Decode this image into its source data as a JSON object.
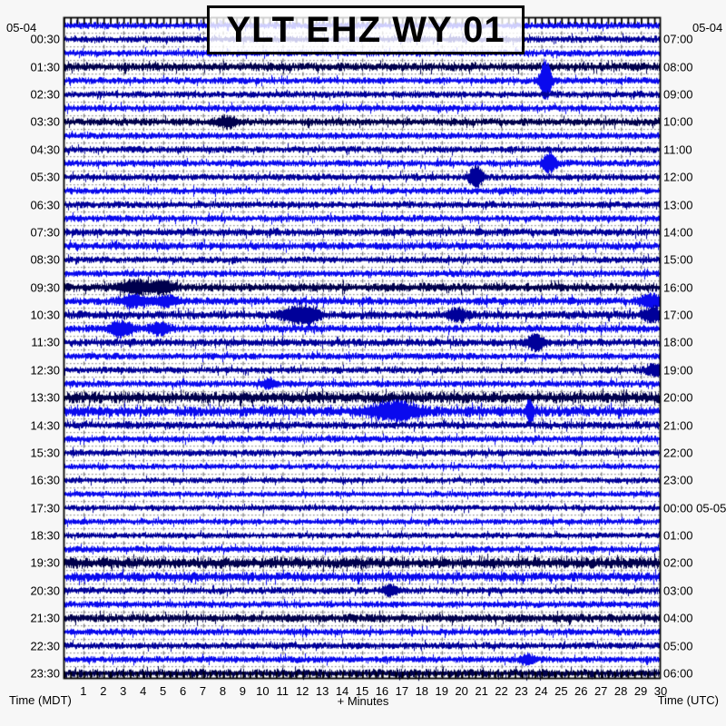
{
  "title": "YLT EHZ WY 01",
  "header": {
    "date_left": "05-04",
    "date_right": "05-04"
  },
  "axes": {
    "left_caption": "Time (MDT)",
    "right_caption": "Time (UTC)",
    "bottom_caption": "+ Minutes",
    "minute_ticks": [
      "1",
      "2",
      "3",
      "4",
      "5",
      "6",
      "7",
      "8",
      "9",
      "10",
      "11",
      "12",
      "13",
      "14",
      "15",
      "16",
      "17",
      "18",
      "19",
      "20",
      "21",
      "22",
      "23",
      "24",
      "25",
      "26",
      "27",
      "28",
      "29",
      "30"
    ]
  },
  "colors": {
    "blue": "#0a0aee",
    "navy": "#000099",
    "dark": "#00004d",
    "grid_dots": "#8c8c8c",
    "minute_marks": "#777777",
    "frame": "#000000",
    "plot_background": "#ffffff",
    "page_background": "#f7f7f7"
  },
  "chart_data": {
    "type": "line",
    "subtype": "helicorder-seismogram",
    "station": "YLT EHZ WY 01",
    "minutes_per_line": 30,
    "lines": 48,
    "x_axis": {
      "label": "+ Minutes",
      "range": [
        0,
        30
      ],
      "tick_step": 1
    },
    "left_axis_label": "Time (MDT)",
    "right_axis_label": "Time (UTC)",
    "start_date_mdt": "05-04",
    "end_date_utc": "05-05",
    "rows": [
      {
        "t": "00:00",
        "c": "blue",
        "a": 4,
        "L": null,
        "R": null,
        "ev": []
      },
      {
        "t": "00:30",
        "c": "navy",
        "a": 4,
        "L": "00:30",
        "R": "07:00",
        "ev": []
      },
      {
        "t": "01:00",
        "c": "blue",
        "a": 4,
        "L": null,
        "R": null,
        "ev": []
      },
      {
        "t": "01:30",
        "c": "dark",
        "a": 5,
        "L": "01:30",
        "R": "08:00",
        "ev": []
      },
      {
        "t": "02:00",
        "c": "blue",
        "a": 4,
        "L": null,
        "R": null,
        "ev": [
          {
            "m": 24.2,
            "a": 26,
            "w": 0.18
          }
        ]
      },
      {
        "t": "02:30",
        "c": "navy",
        "a": 4,
        "L": "02:30",
        "R": "09:00",
        "ev": []
      },
      {
        "t": "03:00",
        "c": "blue",
        "a": 4,
        "L": null,
        "R": null,
        "ev": []
      },
      {
        "t": "03:30",
        "c": "dark",
        "a": 4.5,
        "L": "03:30",
        "R": "10:00",
        "ev": [
          {
            "m": 8.2,
            "a": 5,
            "w": 0.35
          }
        ]
      },
      {
        "t": "04:00",
        "c": "blue",
        "a": 4,
        "L": null,
        "R": null,
        "ev": []
      },
      {
        "t": "04:30",
        "c": "navy",
        "a": 4,
        "L": "04:30",
        "R": "11:00",
        "ev": []
      },
      {
        "t": "05:00",
        "c": "blue",
        "a": 4,
        "L": null,
        "R": null,
        "ev": [
          {
            "m": 24.4,
            "a": 11,
            "w": 0.22
          }
        ]
      },
      {
        "t": "05:30",
        "c": "navy",
        "a": 4,
        "L": "05:30",
        "R": "12:00",
        "ev": [
          {
            "m": 20.7,
            "a": 13,
            "w": 0.22
          }
        ]
      },
      {
        "t": "06:00",
        "c": "blue",
        "a": 4,
        "L": null,
        "R": null,
        "ev": []
      },
      {
        "t": "06:30",
        "c": "navy",
        "a": 4,
        "L": "06:30",
        "R": "13:00",
        "ev": []
      },
      {
        "t": "07:00",
        "c": "blue",
        "a": 4,
        "L": null,
        "R": null,
        "ev": []
      },
      {
        "t": "07:30",
        "c": "navy",
        "a": 4.5,
        "L": "07:30",
        "R": "14:00",
        "ev": []
      },
      {
        "t": "08:00",
        "c": "blue",
        "a": 4.5,
        "L": null,
        "R": null,
        "ev": []
      },
      {
        "t": "08:30",
        "c": "navy",
        "a": 4,
        "L": "08:30",
        "R": "15:00",
        "ev": []
      },
      {
        "t": "09:00",
        "c": "blue",
        "a": 4,
        "L": null,
        "R": null,
        "ev": []
      },
      {
        "t": "09:30",
        "c": "dark",
        "a": 5,
        "L": "09:30",
        "R": "16:00",
        "ev": [
          {
            "m": 3.7,
            "a": 6,
            "w": 0.6
          },
          {
            "m": 5.0,
            "a": 5,
            "w": 0.4
          }
        ]
      },
      {
        "t": "10:00",
        "c": "blue",
        "a": 4.5,
        "L": null,
        "R": null,
        "ev": [
          {
            "m": 3.6,
            "a": 6,
            "w": 0.5
          },
          {
            "m": 5.2,
            "a": 5,
            "w": 0.4
          },
          {
            "m": 29.5,
            "a": 7,
            "w": 0.35
          }
        ]
      },
      {
        "t": "10:30",
        "c": "navy",
        "a": 5,
        "L": "10:30",
        "R": "17:00",
        "ev": [
          {
            "m": 11.7,
            "a": 9,
            "w": 0.5
          },
          {
            "m": 12.5,
            "a": 5,
            "w": 0.3
          },
          {
            "m": 19.8,
            "a": 6,
            "w": 0.3
          },
          {
            "m": 29.6,
            "a": 8,
            "w": 0.3
          }
        ]
      },
      {
        "t": "11:00",
        "c": "blue",
        "a": 4.5,
        "L": null,
        "R": null,
        "ev": [
          {
            "m": 2.9,
            "a": 8,
            "w": 0.4
          },
          {
            "m": 4.8,
            "a": 6,
            "w": 0.35
          }
        ]
      },
      {
        "t": "11:30",
        "c": "navy",
        "a": 4.5,
        "L": "11:30",
        "R": "18:00",
        "ev": [
          {
            "m": 23.7,
            "a": 9,
            "w": 0.3
          }
        ]
      },
      {
        "t": "12:00",
        "c": "blue",
        "a": 4,
        "L": null,
        "R": null,
        "ev": []
      },
      {
        "t": "12:30",
        "c": "navy",
        "a": 4,
        "L": "12:30",
        "R": "19:00",
        "ev": [
          {
            "m": 29.7,
            "a": 6,
            "w": 0.3
          }
        ]
      },
      {
        "t": "13:00",
        "c": "blue",
        "a": 4,
        "L": null,
        "R": null,
        "ev": [
          {
            "m": 10.3,
            "a": 5,
            "w": 0.25
          }
        ]
      },
      {
        "t": "13:30",
        "c": "dark",
        "a": 6.5,
        "L": "13:30",
        "R": "20:00",
        "ev": []
      },
      {
        "t": "14:00",
        "c": "blue",
        "a": 6,
        "L": null,
        "R": null,
        "ev": [
          {
            "m": 16.6,
            "a": 10,
            "w": 0.8
          },
          {
            "m": 23.4,
            "a": 13,
            "w": 0.12
          }
        ]
      },
      {
        "t": "14:30",
        "c": "navy",
        "a": 4.5,
        "L": "14:30",
        "R": "21:00",
        "ev": []
      },
      {
        "t": "15:00",
        "c": "blue",
        "a": 4,
        "L": null,
        "R": null,
        "ev": []
      },
      {
        "t": "15:30",
        "c": "navy",
        "a": 4,
        "L": "15:30",
        "R": "22:00",
        "ev": []
      },
      {
        "t": "16:00",
        "c": "blue",
        "a": 3.5,
        "L": null,
        "R": null,
        "ev": []
      },
      {
        "t": "16:30",
        "c": "navy",
        "a": 3.5,
        "L": "16:30",
        "R": "23:00",
        "ev": []
      },
      {
        "t": "17:00",
        "c": "blue",
        "a": 3.5,
        "L": null,
        "R": null,
        "ev": []
      },
      {
        "t": "17:30",
        "c": "navy",
        "a": 3.5,
        "L": "17:30",
        "R": "00:00 05-05",
        "ev": []
      },
      {
        "t": "18:00",
        "c": "blue",
        "a": 3.5,
        "L": null,
        "R": null,
        "ev": []
      },
      {
        "t": "18:30",
        "c": "navy",
        "a": 3.5,
        "L": "18:30",
        "R": "01:00",
        "ev": []
      },
      {
        "t": "19:00",
        "c": "blue",
        "a": 4,
        "L": null,
        "R": null,
        "ev": []
      },
      {
        "t": "19:30",
        "c": "dark",
        "a": 6.5,
        "L": "19:30",
        "R": "02:00",
        "ev": []
      },
      {
        "t": "20:00",
        "c": "blue",
        "a": 5.5,
        "L": null,
        "R": null,
        "ev": []
      },
      {
        "t": "20:30",
        "c": "navy",
        "a": 4,
        "L": "20:30",
        "R": "03:00",
        "ev": [
          {
            "m": 16.4,
            "a": 5,
            "w": 0.25
          }
        ]
      },
      {
        "t": "21:00",
        "c": "blue",
        "a": 4,
        "L": null,
        "R": null,
        "ev": []
      },
      {
        "t": "21:30",
        "c": "dark",
        "a": 5,
        "L": "21:30",
        "R": "04:00",
        "ev": []
      },
      {
        "t": "22:00",
        "c": "blue",
        "a": 4,
        "L": null,
        "R": null,
        "ev": []
      },
      {
        "t": "22:30",
        "c": "navy",
        "a": 4,
        "L": "22:30",
        "R": "05:00",
        "ev": []
      },
      {
        "t": "23:00",
        "c": "blue",
        "a": 4,
        "L": null,
        "R": null,
        "ev": [
          {
            "m": 23.3,
            "a": 5,
            "w": 0.25
          }
        ]
      },
      {
        "t": "23:30",
        "c": "dark",
        "a": 5,
        "L": "23:30",
        "R": "06:00",
        "ev": []
      }
    ]
  }
}
